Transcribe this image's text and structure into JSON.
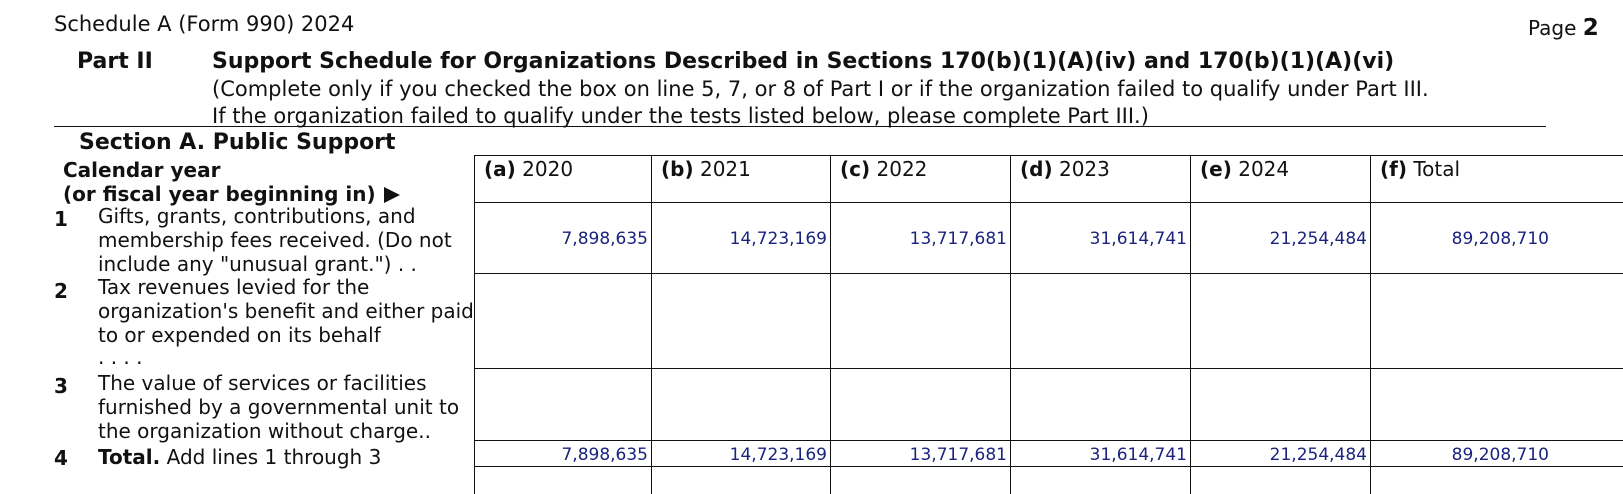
{
  "header": {
    "form_name": "Schedule A (Form 990) 2024",
    "page_label": "Page",
    "page_number": "2"
  },
  "part": {
    "label": "Part II",
    "title": "Support Schedule for Organizations Described in Sections 170(b)(1)(A)(iv) and 170(b)(1)(A)(vi)",
    "note_line1": "(Complete only if you checked the box on line 5, 7, or 8 of Part I or if the organization failed to qualify under Part III.",
    "note_line2": "If the organization failed to qualify under the tests listed below, please complete Part III.)"
  },
  "section": {
    "title": "Section A. Public Support"
  },
  "table": {
    "row_header_line1": "Calendar year",
    "row_header_line2": "(or fiscal year beginning in)",
    "columns": [
      {
        "letter": "(a)",
        "label": "2020"
      },
      {
        "letter": "(b)",
        "label": "2021"
      },
      {
        "letter": "(c)",
        "label": "2022"
      },
      {
        "letter": "(d)",
        "label": "2023"
      },
      {
        "letter": "(e)",
        "label": "2024"
      },
      {
        "letter": "(f)",
        "label": "Total"
      }
    ],
    "lines": [
      {
        "number": "1",
        "text_lines": [
          "Gifts, grants, contributions, and",
          "membership fees received. (Do not",
          "include any \"unusual grant.\")  .   ."
        ],
        "values": [
          "7,898,635",
          "14,723,169",
          "13,717,681",
          "31,614,741",
          "21,254,484",
          "89,208,710"
        ]
      },
      {
        "number": "2",
        "text_lines": [
          "Tax revenues levied for the",
          "organization's benefit and either paid",
          "to or expended on its behalf",
          ".   .   .   ."
        ],
        "values": [
          "",
          "",
          "",
          "",
          "",
          ""
        ]
      },
      {
        "number": "3",
        "text_lines": [
          "The value of services or facilities",
          "furnished by a governmental unit to",
          "the organization without charge.."
        ],
        "values": [
          "",
          "",
          "",
          "",
          "",
          ""
        ]
      },
      {
        "number": "4",
        "bold_lead": "Total.",
        "text_lines": [
          "Add lines 1 through 3"
        ],
        "values": [
          "7,898,635",
          "14,723,169",
          "13,717,681",
          "31,614,741",
          "21,254,484",
          "89,208,710"
        ]
      }
    ]
  }
}
